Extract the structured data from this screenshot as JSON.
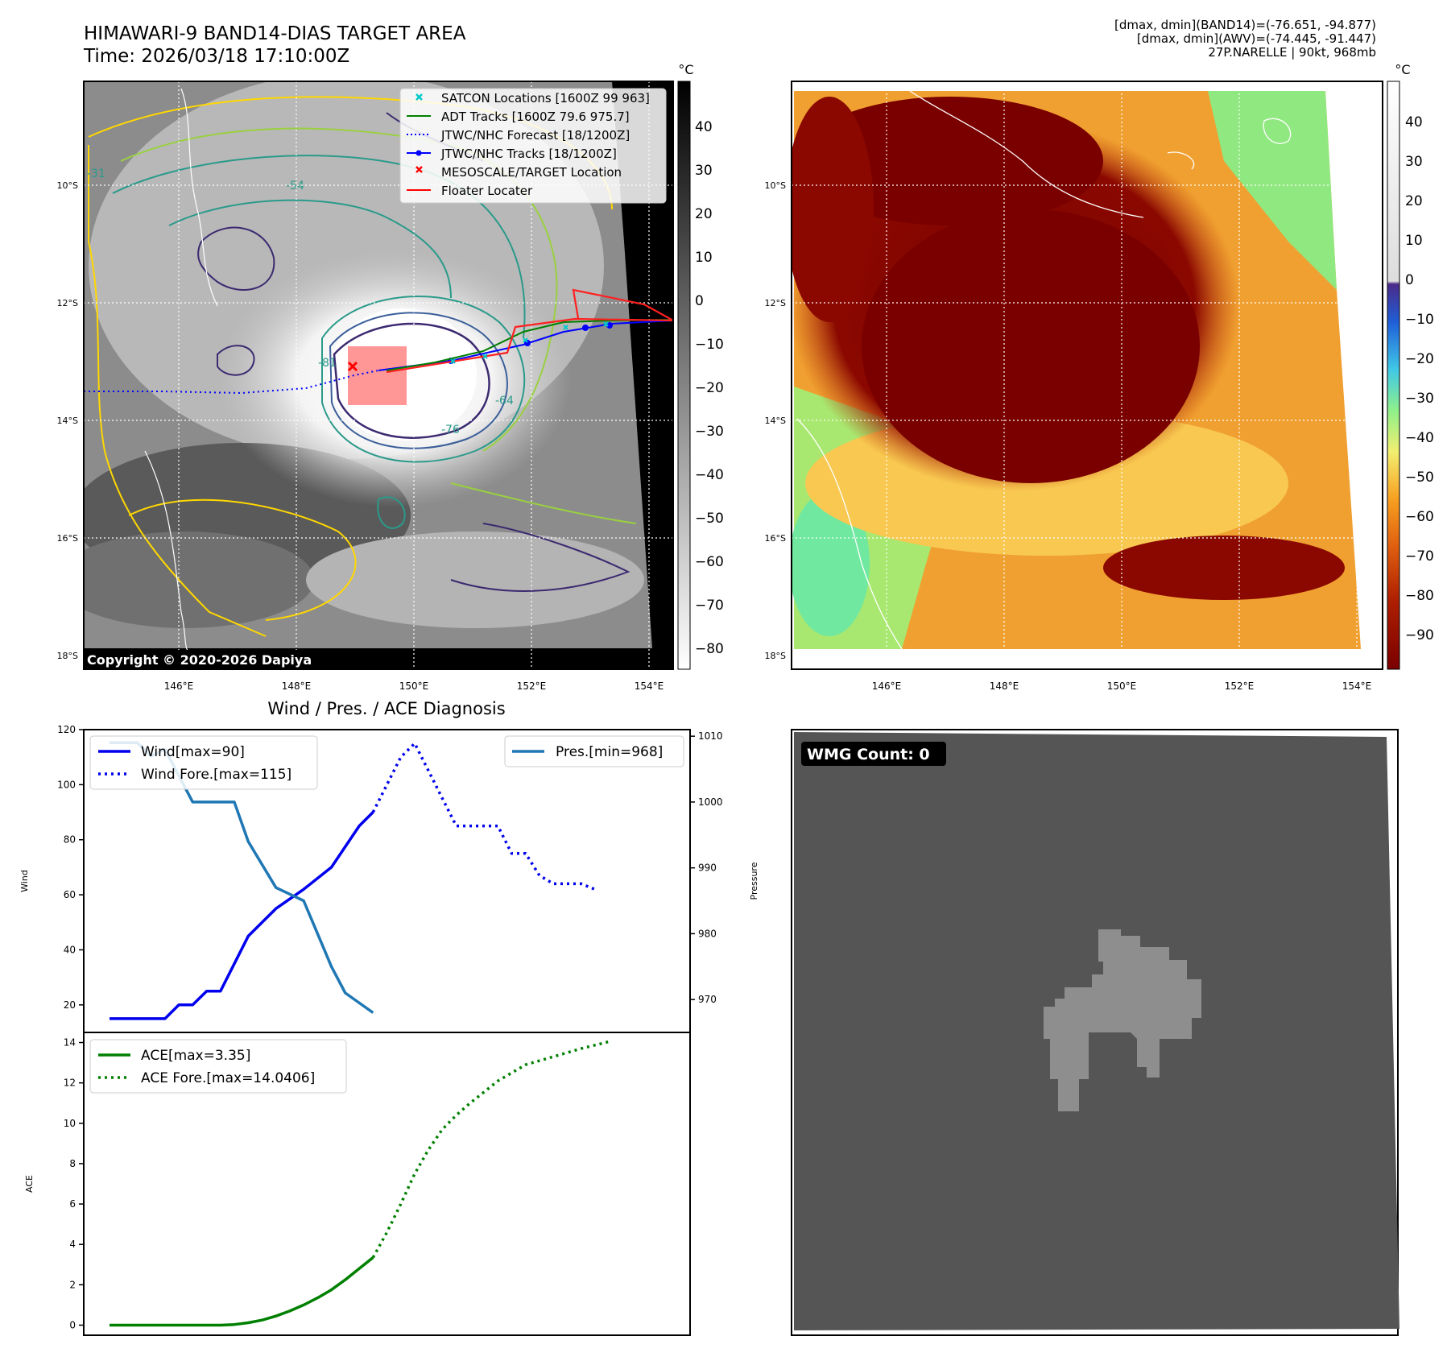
{
  "header": {
    "title_line1": "HIMAWARI-9 BAND14-DIAS TARGET AREA",
    "title_line2": "Time: 2026/03/18 17:10:00Z",
    "info_line1": "[dmax, dmin](BAND14)=(-76.651, -94.877)",
    "info_line2": "[dmax, dmin](AWV)=(-74.445, -91.447)",
    "info_line3": "27P.NARELLE | 90kt, 968mb"
  },
  "map": {
    "lat_labels": [
      "10°S",
      "12°S",
      "14°S",
      "16°S",
      "18°S"
    ],
    "lon_labels": [
      "146°E",
      "148°E",
      "150°E",
      "152°E",
      "154°E"
    ],
    "copyright": "Copyright © 2020-2026 Dapiya",
    "contour_labels": [
      "-31",
      "-54",
      "-64",
      "-76",
      "-81"
    ],
    "legend": [
      {
        "label": "SATCON Locations [1600Z 99 963]",
        "color": "#00c8c8",
        "marker": "x-mark"
      },
      {
        "label": "ADT Tracks [1600Z 79.6 975.7]",
        "color": "#008000",
        "marker": "solid-line"
      },
      {
        "label": "JTWC/NHC Forecast [18/1200Z]",
        "color": "#0000ff",
        "marker": "dotted-line"
      },
      {
        "label": "JTWC/NHC Tracks [18/1200Z]",
        "color": "#0000ff",
        "marker": "line-dot"
      },
      {
        "label": "MESOSCALE/TARGET Location",
        "color": "#ff0000",
        "marker": "x-mark"
      },
      {
        "label": "Floater Locater",
        "color": "#ff0000",
        "marker": "solid-line"
      }
    ]
  },
  "colorbar_gray": {
    "unit": "°C",
    "ticks": [
      "40",
      "30",
      "20",
      "10",
      "0",
      "−10",
      "−20",
      "−30",
      "−40",
      "−50",
      "−60",
      "−70",
      "−80"
    ]
  },
  "colorbar_awv": {
    "unit": "°C",
    "ticks": [
      "40",
      "30",
      "20",
      "10",
      "0",
      "−10",
      "−20",
      "−30",
      "−40",
      "−50",
      "−60",
      "−70",
      "−80",
      "−90"
    ]
  },
  "wmg": {
    "label": "WMG Count: 0"
  },
  "chart_data": [
    {
      "type": "line",
      "title": "Wind / Pres. / ACE Diagnosis",
      "ylabel": "Wind",
      "ylim": [
        10,
        120
      ],
      "yticks": [
        "20",
        "40",
        "60",
        "80",
        "100",
        "120"
      ],
      "y2label": "Pressure",
      "y2lim": [
        965,
        1011
      ],
      "y2ticks": [
        "970",
        "980",
        "990",
        "1000",
        "1010"
      ],
      "x_index_range": [
        0,
        20
      ],
      "series": [
        {
          "name": "Wind[max=90]",
          "axis": "left",
          "style": "solid",
          "color": "#0000ee",
          "x": [
            0,
            1,
            2,
            2.5,
            3,
            3.5,
            4,
            5,
            6,
            7,
            8,
            9,
            9.5
          ],
          "values": [
            15,
            15,
            15,
            20,
            20,
            25,
            25,
            45,
            55,
            62,
            70,
            85,
            90
          ]
        },
        {
          "name": "Wind Fore.[max=115]",
          "axis": "left",
          "style": "dotted",
          "color": "#0000ee",
          "x": [
            9.5,
            10.5,
            11,
            12,
            12.5,
            13,
            14,
            14.5,
            15,
            15.5,
            16,
            17,
            17.5
          ],
          "values": [
            90,
            110,
            115,
            95,
            85,
            85,
            85,
            75,
            75,
            67,
            64,
            64,
            62
          ]
        },
        {
          "name": "Pres.[min=968]",
          "axis": "right",
          "style": "solid",
          "color": "#1f77b4",
          "x": [
            0,
            1,
            1.5,
            2,
            3,
            4,
            4.5,
            5,
            6,
            6.5,
            7,
            7.5,
            8,
            8.5,
            9.5
          ],
          "values": [
            1009,
            1009,
            1007,
            1008,
            1000,
            1000,
            1000,
            994,
            987,
            986,
            985,
            980,
            975,
            971,
            968
          ]
        }
      ]
    },
    {
      "type": "line",
      "ylabel": "ACE",
      "ylim": [
        -0.5,
        14.5
      ],
      "yticks": [
        "0",
        "2",
        "4",
        "6",
        "8",
        "10",
        "12",
        "14"
      ],
      "series": [
        {
          "name": "ACE[max=3.35]",
          "style": "solid",
          "color": "#008000",
          "x": [
            0,
            1,
            2,
            3,
            4,
            4.5,
            5,
            5.5,
            6,
            6.5,
            7,
            7.5,
            8,
            8.5,
            9,
            9.5
          ],
          "values": [
            0,
            0,
            0,
            0,
            0,
            0.03,
            0.12,
            0.25,
            0.45,
            0.7,
            1.0,
            1.35,
            1.75,
            2.25,
            2.8,
            3.35
          ]
        },
        {
          "name": "ACE Fore.[max=14.0406]",
          "style": "dotted",
          "color": "#008000",
          "x": [
            9.5,
            10,
            10.5,
            11,
            11.5,
            12,
            12.5,
            13,
            14,
            15,
            16,
            17,
            18
          ],
          "values": [
            3.35,
            4.6,
            6.0,
            7.5,
            8.7,
            9.7,
            10.4,
            11.0,
            12.1,
            12.9,
            13.3,
            13.7,
            14.04
          ]
        }
      ]
    }
  ]
}
